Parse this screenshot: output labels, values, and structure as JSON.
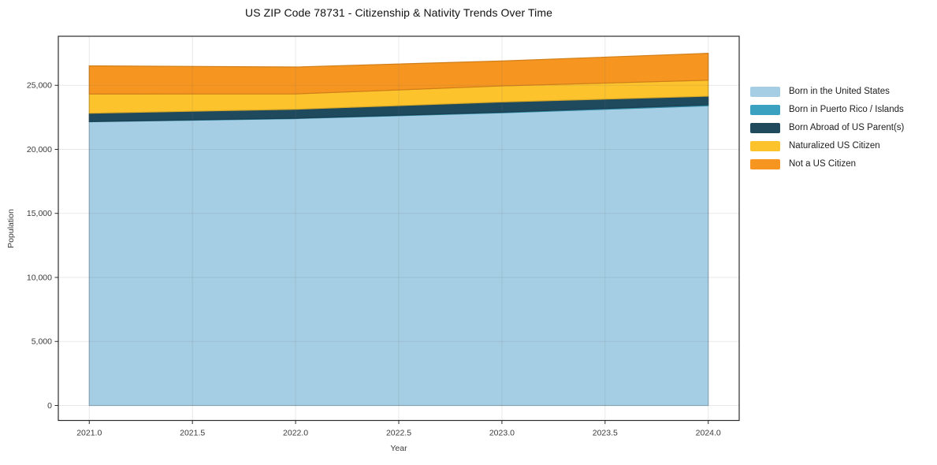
{
  "figure": {
    "background": "#ffffff"
  },
  "chart_data": {
    "type": "area",
    "stacked": true,
    "title": "US ZIP Code 78731 - Citizenship & Nativity Trends Over Time",
    "xlabel": "Year",
    "ylabel": "Population",
    "x": [
      2021,
      2022,
      2023,
      2024
    ],
    "series": [
      {
        "name": "Born in the United States",
        "color": "#a5cee4",
        "values": [
          22150,
          22400,
          22850,
          23400
        ]
      },
      {
        "name": "Born in Puerto Rico / Islands",
        "color": "#3aa1c1",
        "values": [
          20,
          30,
          50,
          80
        ]
      },
      {
        "name": "Born Abroad of US Parent(s)",
        "color": "#1f4a5e",
        "values": [
          650,
          700,
          800,
          670
        ]
      },
      {
        "name": "Naturalized US Citizen",
        "color": "#fcc32d",
        "values": [
          1500,
          1200,
          1250,
          1250
        ]
      },
      {
        "name": "Not a US Citizen",
        "color": "#f6951f",
        "values": [
          2200,
          2100,
          1950,
          2100
        ]
      }
    ],
    "totals": [
      26520,
      26430,
      26900,
      27500
    ],
    "xlim": [
      2020.85,
      2024.15
    ],
    "ylim": [
      -1170,
      28830
    ],
    "xticks": [
      2021.0,
      2021.5,
      2022.0,
      2022.5,
      2023.0,
      2023.5,
      2024.0
    ],
    "xtick_labels": [
      "2021.0",
      "2021.5",
      "2022.0",
      "2022.5",
      "2023.0",
      "2023.5",
      "2024.0"
    ],
    "yticks": [
      0,
      5000,
      10000,
      15000,
      20000,
      25000
    ],
    "ytick_labels": [
      "0",
      "5,000",
      "10,000",
      "15,000",
      "20,000",
      "25,000"
    ],
    "grid": true,
    "legend_position": "right-outside",
    "axis_color": "#2b2b2b",
    "tick_text_color": "#3a3a3a",
    "grid_color_rgba": "rgba(110,110,110,0.16)"
  }
}
